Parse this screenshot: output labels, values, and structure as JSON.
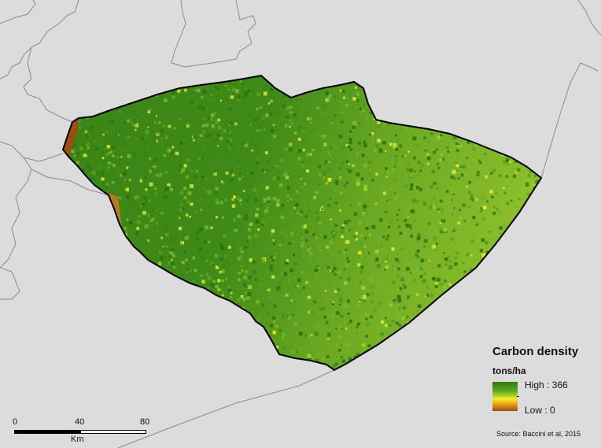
{
  "legend": {
    "title": "Carbon density",
    "unit": "tons/ha",
    "high_label": "High : 366",
    "low_label": "Low : 0",
    "ramp_colors": [
      "#2f7a12",
      "#5aa51f",
      "#a9d42c",
      "#f3ef2a",
      "#e7a21c",
      "#9c4f0e"
    ]
  },
  "scale_bar": {
    "ticks": [
      "0",
      "40",
      "80"
    ],
    "unit": "Km"
  },
  "source": "Source: Baccini et al, 2015",
  "colors": {
    "background": "#dcdcdc",
    "boundary_lines": "#8a8a8a",
    "region_outline": "#000000",
    "forest_dark": "#2f7a12",
    "forest_light": "#8cbf2a"
  }
}
